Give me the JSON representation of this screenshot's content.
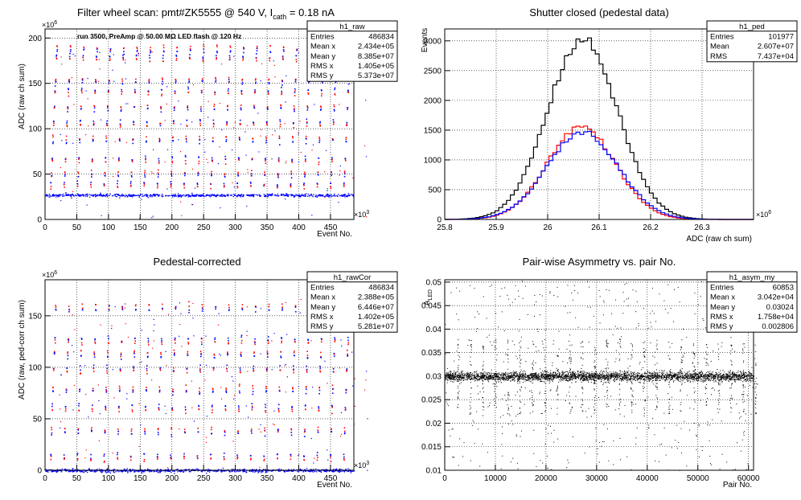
{
  "chart_data": [
    {
      "id": "h1_raw",
      "type": "scatter",
      "title": "Filter wheel scan: pmt#ZK5555 @   540 V, I",
      "title_sub": "cath",
      "title_tail": " = 0.18 nA",
      "annotation": "run 3500, PreAmp @ 50.00 MΩ LED flash @  120 Hz",
      "xlabel": "Event No.",
      "ylabel": "ADC (raw ch sum)",
      "xlim": [
        0,
        486834
      ],
      "ylim": [
        0,
        210
      ],
      "x_exponent": "×10",
      "x_exponent_power": "3",
      "y_exponent": "×10",
      "y_exponent_power": "6",
      "x_ticks": [
        "0",
        "50",
        "100",
        "150",
        "200",
        "250",
        "300",
        "350",
        "400",
        "450"
      ],
      "y_ticks": [
        "0",
        "50",
        "100",
        "150",
        "200"
      ],
      "grid": true,
      "stats": {
        "name": "h1_raw",
        "rows": [
          {
            "label": "Entries",
            "value": "486834"
          },
          {
            "label": "Mean x",
            "value": "2.434e+05"
          },
          {
            "label": "Mean y",
            "value": "8.385e+07"
          },
          {
            "label": "RMS x",
            "value": "1.405e+05"
          },
          {
            "label": "RMS y",
            "value": "5.373e+07"
          }
        ]
      },
      "baseline_level": 27,
      "levels": [
        40,
        52,
        68,
        90,
        108,
        125,
        143,
        155,
        180,
        190
      ],
      "series_colors": [
        "#0000ff",
        "#ff0000"
      ]
    },
    {
      "id": "h1_ped",
      "type": "histogram",
      "title": "Shutter closed (pedestal data)",
      "xlabel": "ADC (raw ch sum)",
      "ylabel": "Events",
      "xlim": [
        25.8,
        26.4
      ],
      "ylim": [
        0,
        3200
      ],
      "x_exponent": "×10",
      "x_exponent_power": "6",
      "x_ticks": [
        "25.8",
        "25.9",
        "26",
        "26.1",
        "26.2",
        "26.3"
      ],
      "x_tick_values": [
        25.8,
        25.9,
        26.0,
        26.1,
        26.2,
        26.3
      ],
      "y_ticks": [
        "0",
        "500",
        "1000",
        "1500",
        "2000",
        "2500",
        "3000"
      ],
      "y_tick_values": [
        0,
        500,
        1000,
        1500,
        2000,
        2500,
        3000
      ],
      "grid": true,
      "stats": {
        "name": "h1_ped",
        "rows": [
          {
            "label": "Entries",
            "value": "101977"
          },
          {
            "label": "Mean",
            "value": "2.607e+07"
          },
          {
            "label": "RMS",
            "value": "7.437e+04"
          }
        ]
      },
      "bin_width": 0.0075,
      "series": [
        {
          "color": "#000000",
          "peak": 3020,
          "mean": 26.068,
          "sigma": 0.068
        },
        {
          "color": "#ff0000",
          "peak": 1560,
          "mean": 26.065,
          "sigma": 0.066
        },
        {
          "color": "#0000ff",
          "peak": 1470,
          "mean": 26.068,
          "sigma": 0.069
        }
      ]
    },
    {
      "id": "h1_rawCor",
      "type": "scatter",
      "title": "Pedestal-corrected",
      "xlabel": "Event No.",
      "ylabel": "ADC (raw, ped-corr ch sum)",
      "xlim": [
        0,
        486834
      ],
      "ylim": [
        0,
        185
      ],
      "x_exponent": "×10",
      "x_exponent_power": "3",
      "y_exponent": "×10",
      "y_exponent_power": "6",
      "x_ticks": [
        "0",
        "50",
        "100",
        "150",
        "200",
        "250",
        "300",
        "350",
        "400",
        "450"
      ],
      "y_ticks": [
        "0",
        "50",
        "100",
        "150"
      ],
      "grid": true,
      "stats": {
        "name": "h1_rawCor",
        "rows": [
          {
            "label": "Entries",
            "value": "486834"
          },
          {
            "label": "Mean x",
            "value": "2.388e+05"
          },
          {
            "label": "Mean y",
            "value": "6.446e+07"
          },
          {
            "label": "RMS x",
            "value": "1.402e+05"
          },
          {
            "label": "RMS y",
            "value": "5.281e+07"
          }
        ]
      },
      "baseline_level": 0,
      "levels": [
        15,
        40,
        62,
        80,
        100,
        115,
        128,
        160
      ],
      "series_colors": [
        "#0000ff",
        "#ff0000"
      ]
    },
    {
      "id": "h1_asym_my",
      "type": "scatter",
      "title": "Pair-wise Asymmetry vs. pair No.",
      "xlabel": "Pair No.",
      "ylabel": "A",
      "ylabel_sub": "LED",
      "xlim": [
        0,
        61000
      ],
      "ylim": [
        0.01,
        0.0505
      ],
      "x_ticks": [
        "0",
        "10000",
        "20000",
        "30000",
        "40000",
        "50000",
        "60000"
      ],
      "x_tick_values": [
        0,
        10000,
        20000,
        30000,
        40000,
        50000,
        60000
      ],
      "y_ticks": [
        "0.01",
        "0.015",
        "0.02",
        "0.025",
        "0.03",
        "0.035",
        "0.04",
        "0.045",
        "0.05"
      ],
      "y_tick_values": [
        0.01,
        0.015,
        0.02,
        0.025,
        0.03,
        0.035,
        0.04,
        0.045,
        0.05
      ],
      "grid": true,
      "stats": {
        "name": "h1_asym_my",
        "rows": [
          {
            "label": "Entries",
            "value": "60853"
          },
          {
            "label": "Mean x",
            "value": "3.042e+04"
          },
          {
            "label": "Mean y",
            "value": "0.03024"
          },
          {
            "label": "RMS x",
            "value": "1.758e+04"
          },
          {
            "label": "RMS y",
            "value": "0.002806"
          }
        ]
      },
      "center": 0.03,
      "series_colors": [
        "#000000"
      ]
    }
  ]
}
